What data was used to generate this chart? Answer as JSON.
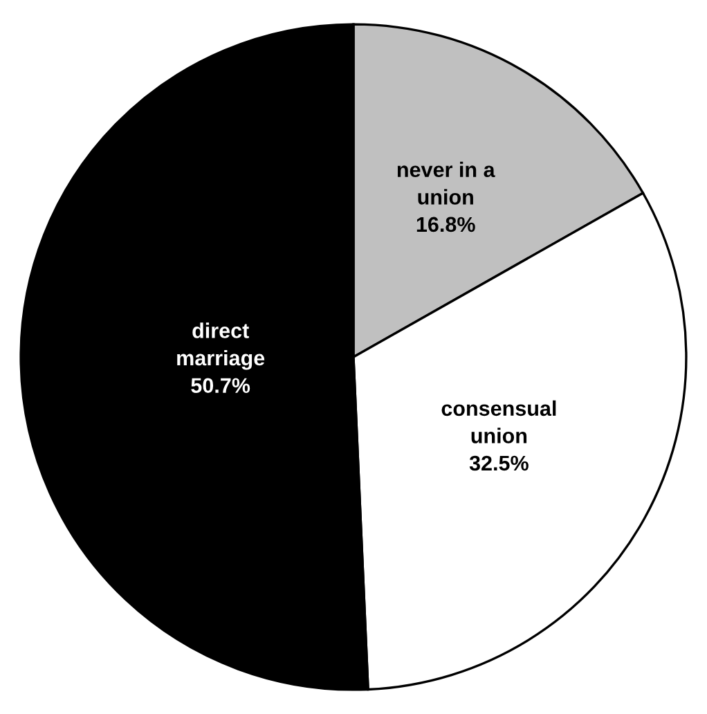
{
  "chart_data": {
    "type": "pie",
    "categories": [
      "never in a\nunion",
      "consensual\nunion",
      "direct\nmarriage"
    ],
    "values": [
      16.8,
      32.5,
      50.7
    ],
    "colors": [
      "#c0c0c0",
      "#ffffff",
      "#000000"
    ],
    "value_labels": [
      "16.8%",
      "32.5%",
      "50.7%"
    ]
  }
}
